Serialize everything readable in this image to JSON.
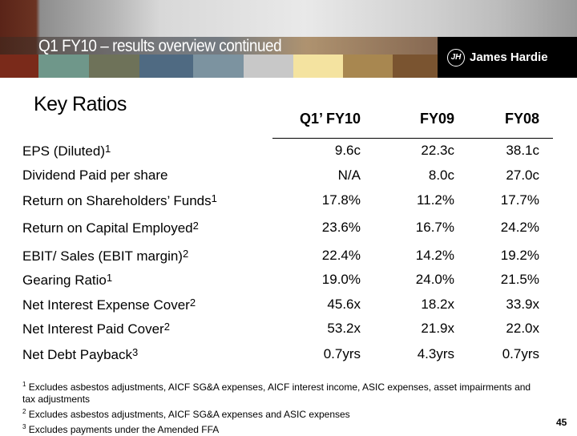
{
  "header": {
    "title": "Q1 FY10 – results overview continued",
    "logo": "James Hardie",
    "logo_mark": "JH",
    "stripe_colors": [
      "#7a2a1a",
      "#6f978a",
      "#6e7259",
      "#4f6a82",
      "#7c93a0",
      "#c8c8c8",
      "#f4e3a0",
      "#a88750",
      "#7a5430"
    ]
  },
  "heading": "Key Ratios",
  "columns": [
    "Q1’ FY10",
    "FY09",
    "FY08"
  ],
  "rows": [
    {
      "label": "EPS (Diluted)",
      "sup": "1",
      "values": [
        "9.6c",
        "22.3c",
        "38.1c"
      ]
    },
    {
      "label": "Dividend Paid per share",
      "sup": "",
      "values": [
        "N/A",
        "8.0c",
        "27.0c"
      ]
    },
    {
      "label": "Return on Shareholders’ Funds",
      "sup": "1",
      "values": [
        "17.8%",
        "11.2%",
        "17.7%"
      ]
    },
    {
      "label": "Return on Capital Employed",
      "sup": "2",
      "values": [
        "23.6%",
        "16.7%",
        "24.2%"
      ]
    },
    {
      "label": "EBIT/ Sales (EBIT margin)",
      "sup": "2",
      "values": [
        "22.4%",
        "14.2%",
        "19.2%"
      ]
    },
    {
      "label": "Gearing Ratio",
      "sup": "1",
      "values": [
        "19.0%",
        "24.0%",
        "21.5%"
      ]
    },
    {
      "label": "Net Interest Expense Cover",
      "sup": "2",
      "values": [
        "45.6x",
        "18.2x",
        "33.9x"
      ]
    },
    {
      "label": "Net Interest Paid Cover",
      "sup": "2",
      "values": [
        "53.2x",
        "21.9x",
        "22.0x"
      ]
    },
    {
      "label": "Net Debt Payback",
      "sup": "3",
      "values": [
        "0.7yrs",
        "4.3yrs",
        "0.7yrs"
      ]
    }
  ],
  "footnotes": [
    {
      "num": "1",
      "text": "Excludes asbestos adjustments, AICF SG&A expenses, AICF interest income, ASIC expenses, asset impairments and tax adjustments"
    },
    {
      "num": "2",
      "text": "Excludes asbestos adjustments, AICF SG&A expenses and ASIC expenses"
    },
    {
      "num": "3",
      "text": "Excludes payments under the Amended FFA"
    }
  ],
  "page_number": "45"
}
